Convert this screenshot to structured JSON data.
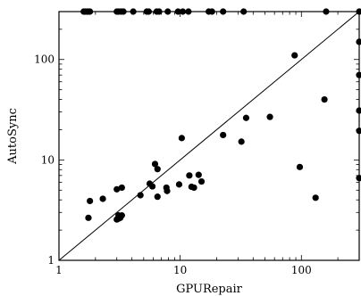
{
  "chart_data": {
    "type": "scatter",
    "title": "",
    "xlabel": "GPURepair",
    "ylabel": "AutoSync",
    "x_scale": "log",
    "y_scale": "log",
    "xlim": [
      1,
      300
    ],
    "ylim": [
      1,
      300
    ],
    "x_ticks": [
      {
        "value": 1,
        "label": "1"
      },
      {
        "value": 10,
        "label": "10"
      },
      {
        "value": 100,
        "label": "100"
      }
    ],
    "y_ticks": [
      {
        "value": 1,
        "label": "1"
      },
      {
        "value": 10,
        "label": "10"
      },
      {
        "value": 100,
        "label": "100"
      }
    ],
    "reference_line": "y = x",
    "grid": false,
    "marker_color": "#000000",
    "points": [
      {
        "x": 1.6,
        "y": 300
      },
      {
        "x": 1.65,
        "y": 300
      },
      {
        "x": 1.7,
        "y": 300
      },
      {
        "x": 1.75,
        "y": 300
      },
      {
        "x": 1.8,
        "y": 300
      },
      {
        "x": 3.0,
        "y": 300
      },
      {
        "x": 3.1,
        "y": 300
      },
      {
        "x": 3.25,
        "y": 300
      },
      {
        "x": 3.4,
        "y": 300
      },
      {
        "x": 4.1,
        "y": 300
      },
      {
        "x": 5.3,
        "y": 300
      },
      {
        "x": 5.5,
        "y": 300
      },
      {
        "x": 6.4,
        "y": 300
      },
      {
        "x": 6.7,
        "y": 300
      },
      {
        "x": 7.9,
        "y": 300
      },
      {
        "x": 9.6,
        "y": 300
      },
      {
        "x": 10.5,
        "y": 300
      },
      {
        "x": 11.7,
        "y": 300
      },
      {
        "x": 17.2,
        "y": 300
      },
      {
        "x": 18.3,
        "y": 300
      },
      {
        "x": 22.6,
        "y": 300
      },
      {
        "x": 33.4,
        "y": 300
      },
      {
        "x": 160,
        "y": 300
      },
      {
        "x": 300,
        "y": 300
      },
      {
        "x": 1.8,
        "y": 3.9
      },
      {
        "x": 1.75,
        "y": 2.65
      },
      {
        "x": 2.3,
        "y": 4.1
      },
      {
        "x": 3.0,
        "y": 5.1
      },
      {
        "x": 3.3,
        "y": 5.3
      },
      {
        "x": 3.0,
        "y": 2.55
      },
      {
        "x": 3.1,
        "y": 2.6
      },
      {
        "x": 3.2,
        "y": 2.65
      },
      {
        "x": 3.3,
        "y": 2.8
      },
      {
        "x": 3.1,
        "y": 2.8
      },
      {
        "x": 4.7,
        "y": 4.45
      },
      {
        "x": 5.6,
        "y": 5.8
      },
      {
        "x": 5.9,
        "y": 5.45
      },
      {
        "x": 6.2,
        "y": 9.1
      },
      {
        "x": 6.5,
        "y": 8.1
      },
      {
        "x": 6.5,
        "y": 4.3
      },
      {
        "x": 7.7,
        "y": 5.3
      },
      {
        "x": 7.8,
        "y": 4.9
      },
      {
        "x": 9.8,
        "y": 5.7
      },
      {
        "x": 10.3,
        "y": 16.5
      },
      {
        "x": 11.9,
        "y": 7.0
      },
      {
        "x": 12.4,
        "y": 5.4
      },
      {
        "x": 13.0,
        "y": 5.3
      },
      {
        "x": 14.2,
        "y": 7.1
      },
      {
        "x": 15.0,
        "y": 6.1
      },
      {
        "x": 22.6,
        "y": 17.7
      },
      {
        "x": 32.0,
        "y": 15.2
      },
      {
        "x": 35.0,
        "y": 26.2
      },
      {
        "x": 55.0,
        "y": 26.8
      },
      {
        "x": 88.0,
        "y": 110
      },
      {
        "x": 97.0,
        "y": 8.5
      },
      {
        "x": 131.0,
        "y": 4.2
      },
      {
        "x": 155.0,
        "y": 40.0
      },
      {
        "x": 300,
        "y": 150
      },
      {
        "x": 300,
        "y": 70
      },
      {
        "x": 300,
        "y": 31
      },
      {
        "x": 300,
        "y": 19.5
      },
      {
        "x": 300,
        "y": 6.6
      }
    ]
  }
}
